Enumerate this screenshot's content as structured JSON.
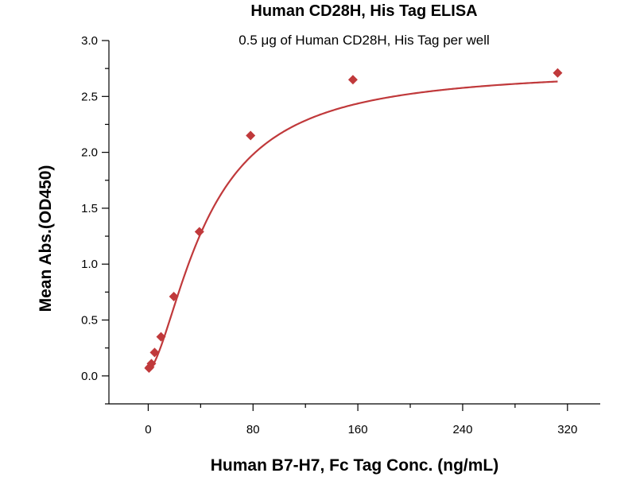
{
  "chart_data": {
    "type": "scatter",
    "title": "Human CD28H, His Tag ELISA",
    "subtitle": "0.5 μg of Human CD28H, His Tag per well",
    "xlabel": "Human B7-H7, Fc Tag Conc. (ng/mL)",
    "ylabel": "Mean Abs.(OD450)",
    "xlim": [
      -30,
      345
    ],
    "ylim": [
      -0.25,
      3.0
    ],
    "xticks": [
      0,
      80,
      160,
      240,
      320
    ],
    "yticks": [
      0.0,
      0.5,
      1.0,
      1.5,
      2.0,
      2.5,
      3.0
    ],
    "xtick_labels": [
      "0",
      "80",
      "160",
      "240",
      "320"
    ],
    "ytick_labels": [
      "0.0",
      "0.5",
      "1.0",
      "1.5",
      "2.0",
      "2.5",
      "3.0"
    ],
    "grid": false,
    "marker_color": "#c0393b",
    "curve_color": "#c0393b",
    "series": [
      {
        "x": [
          0.61,
          1.22,
          2.44,
          4.88,
          9.77,
          19.53,
          39.06,
          78.13,
          156.25,
          312.5
        ],
        "y": [
          0.07,
          0.08,
          0.11,
          0.21,
          0.35,
          0.71,
          1.29,
          2.15,
          2.65,
          2.71
        ]
      }
    ],
    "fit": {
      "model": "4PL",
      "bottom": 0.05,
      "top": 2.75,
      "ec50": 45,
      "hill": 1.6
    }
  }
}
